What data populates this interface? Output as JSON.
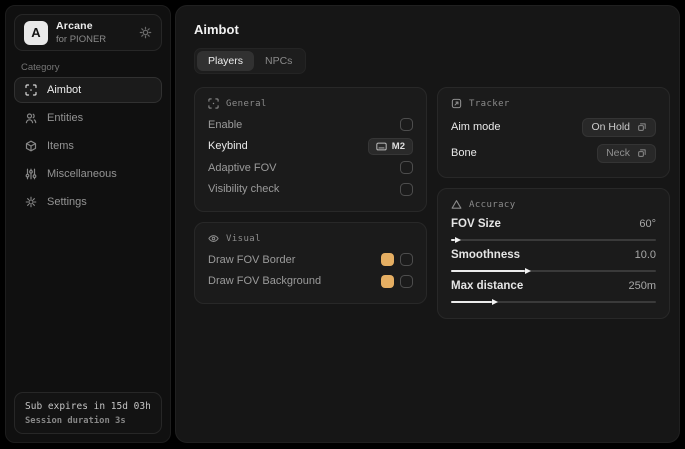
{
  "app": {
    "name": "Arcane",
    "subtitle": "for PIONER",
    "logo_letter": "A"
  },
  "sidebar": {
    "category_label": "Category",
    "items": [
      {
        "label": "Aimbot",
        "active": true
      },
      {
        "label": "Entities",
        "active": false
      },
      {
        "label": "Items",
        "active": false
      },
      {
        "label": "Miscellaneous",
        "active": false
      },
      {
        "label": "Settings",
        "active": false
      }
    ],
    "footer": {
      "line1": "Sub expires in 15d 03h",
      "line2": "Session duration 3s"
    }
  },
  "main": {
    "title": "Aimbot",
    "tabs": [
      {
        "label": "Players",
        "active": true
      },
      {
        "label": "NPCs",
        "active": false
      }
    ],
    "cards": {
      "general": {
        "header": "General",
        "rows": [
          {
            "label": "Enable",
            "control": "checkbox",
            "checked": false
          },
          {
            "label": "Keybind",
            "control": "keybind",
            "value": "M2"
          },
          {
            "label": "Adaptive FOV",
            "control": "checkbox",
            "checked": false
          },
          {
            "label": "Visibility check",
            "control": "checkbox",
            "checked": false
          }
        ]
      },
      "visual": {
        "header": "Visual",
        "rows": [
          {
            "label": "Draw FOV Border",
            "control": "color+checkbox",
            "checked": false
          },
          {
            "label": "Draw FOV Background",
            "control": "color+checkbox",
            "checked": false
          }
        ]
      },
      "tracker": {
        "header": "Tracker",
        "rows": [
          {
            "label": "Aim mode",
            "value": "On Hold"
          },
          {
            "label": "Bone",
            "value": "Neck"
          }
        ]
      },
      "accuracy": {
        "header": "Accuracy",
        "sliders": [
          {
            "label": "FOV Size",
            "value": "60°",
            "percent": 2
          },
          {
            "label": "Smoothness",
            "value": "10.0",
            "percent": 36
          },
          {
            "label": "Max distance",
            "value": "250m",
            "percent": 20
          }
        ]
      }
    }
  },
  "colors": {
    "swatch": "#e5ae62"
  }
}
